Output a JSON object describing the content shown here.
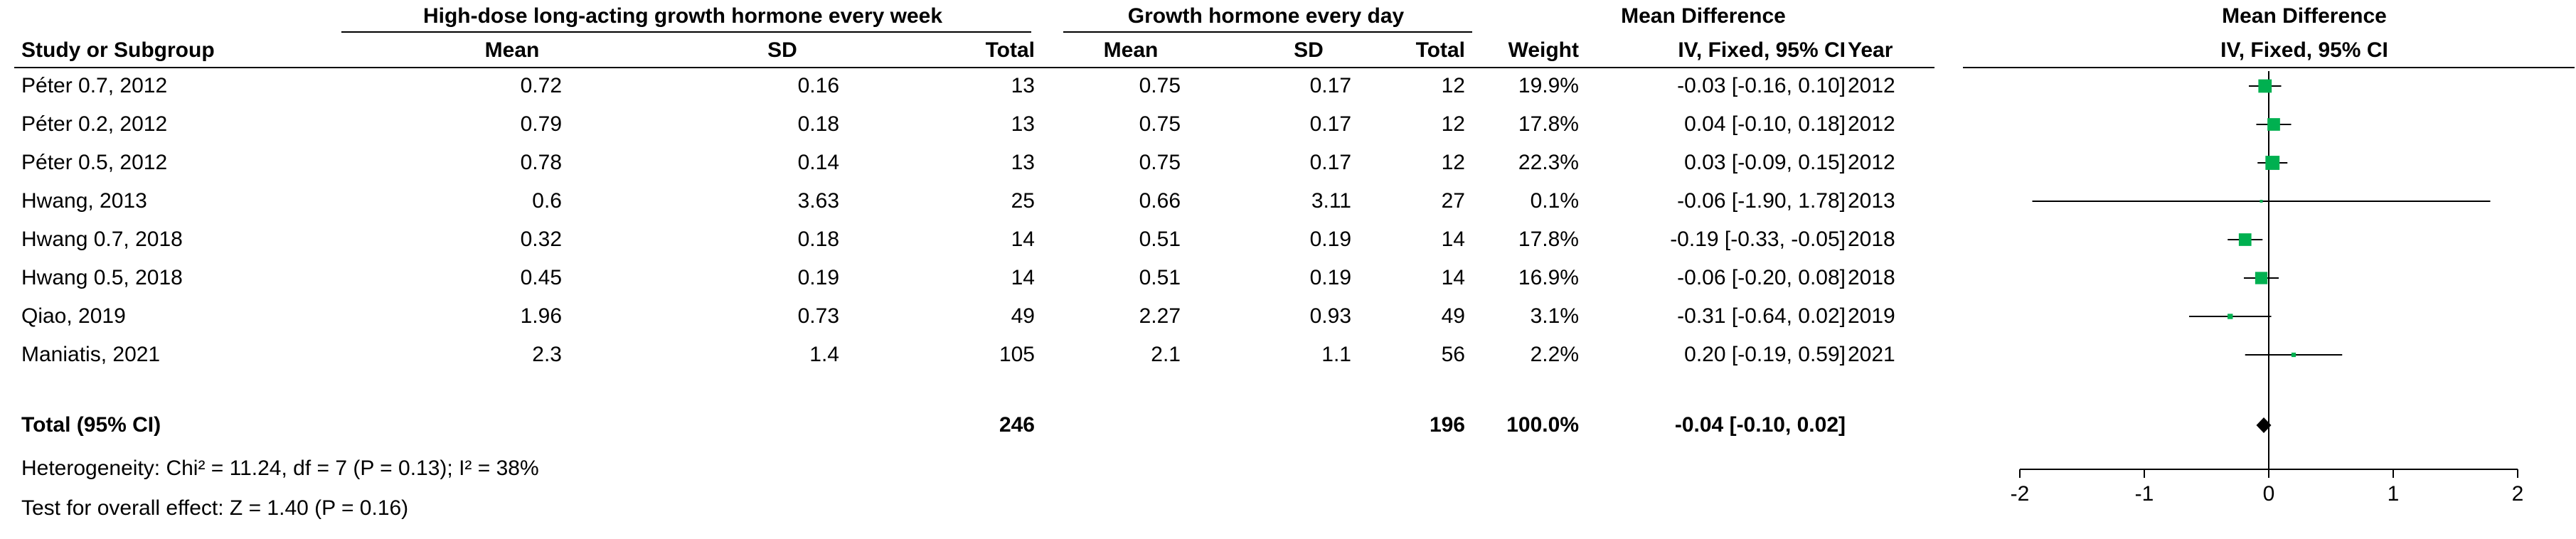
{
  "header": {
    "group1_title": "High-dose long-acting growth hormone every week",
    "group2_title": "Growth hormone every day",
    "md_title": "Mean Difference",
    "plot_title": "Mean Difference",
    "col_study": "Study or Subgroup",
    "col_mean1": "Mean",
    "col_sd1": "SD",
    "col_total1": "Total",
    "col_mean2": "Mean",
    "col_sd2": "SD",
    "col_total2": "Total",
    "col_weight": "Weight",
    "col_md": "IV, Fixed, 95% CI",
    "col_year": "Year",
    "plot_subtitle": "IV, Fixed, 95% CI"
  },
  "studies": [
    {
      "name": "Péter 0.7, 2012",
      "mean1": "0.72",
      "sd1": "0.16",
      "total1": "13",
      "mean2": "0.75",
      "sd2": "0.17",
      "total2": "12",
      "weight": "19.9%",
      "ci": "-0.03 [-0.16, 0.10]",
      "year": "2012"
    },
    {
      "name": "Péter 0.2, 2012",
      "mean1": "0.79",
      "sd1": "0.18",
      "total1": "13",
      "mean2": "0.75",
      "sd2": "0.17",
      "total2": "12",
      "weight": "17.8%",
      "ci": "0.04 [-0.10, 0.18]",
      "year": "2012"
    },
    {
      "name": "Péter 0.5, 2012",
      "mean1": "0.78",
      "sd1": "0.14",
      "total1": "13",
      "mean2": "0.75",
      "sd2": "0.17",
      "total2": "12",
      "weight": "22.3%",
      "ci": "0.03 [-0.09, 0.15]",
      "year": "2012"
    },
    {
      "name": "Hwang, 2013",
      "mean1": "0.6",
      "sd1": "3.63",
      "total1": "25",
      "mean2": "0.66",
      "sd2": "3.11",
      "total2": "27",
      "weight": "0.1%",
      "ci": "-0.06 [-1.90, 1.78]",
      "year": "2013"
    },
    {
      "name": "Hwang 0.7, 2018",
      "mean1": "0.32",
      "sd1": "0.18",
      "total1": "14",
      "mean2": "0.51",
      "sd2": "0.19",
      "total2": "14",
      "weight": "17.8%",
      "ci": "-0.19 [-0.33, -0.05]",
      "year": "2018"
    },
    {
      "name": "Hwang 0.5, 2018",
      "mean1": "0.45",
      "sd1": "0.19",
      "total1": "14",
      "mean2": "0.51",
      "sd2": "0.19",
      "total2": "14",
      "weight": "16.9%",
      "ci": "-0.06 [-0.20, 0.08]",
      "year": "2018"
    },
    {
      "name": "Qiao, 2019",
      "mean1": "1.96",
      "sd1": "0.73",
      "total1": "49",
      "mean2": "2.27",
      "sd2": "0.93",
      "total2": "49",
      "weight": "3.1%",
      "ci": "-0.31 [-0.64, 0.02]",
      "year": "2019"
    },
    {
      "name": "Maniatis, 2021",
      "mean1": "2.3",
      "sd1": "1.4",
      "total1": "105",
      "mean2": "2.1",
      "sd2": "1.1",
      "total2": "56",
      "weight": "2.2%",
      "ci": "0.20 [-0.19, 0.59]",
      "year": "2021"
    }
  ],
  "total_row": {
    "label": "Total (95% CI)",
    "total1": "246",
    "total2": "196",
    "weight": "100.0%",
    "ci": "-0.04 [-0.10, 0.02]"
  },
  "footer": {
    "heterogeneity": "Heterogeneity: Chi² = 11.24, df = 7 (P = 0.13); I² = 38%",
    "overall_effect": "Test for overall effect: Z = 1.40 (P = 0.16)"
  },
  "colors": {
    "point": "#00b050",
    "line": "#000000",
    "diamond": "#000000"
  },
  "chart_data": {
    "type": "scatter",
    "title": "Mean Difference",
    "subtitle": "IV, Fixed, 95% CI",
    "xlim": [
      -2,
      2
    ],
    "ticks": [
      -2,
      -1,
      0,
      1,
      2
    ],
    "tick_labels": [
      "-2",
      "-1",
      "0",
      "1",
      "2"
    ],
    "null_line": 0,
    "series": [
      {
        "points": [
          {
            "study": "Péter 0.7, 2012",
            "md": -0.03,
            "lo": -0.16,
            "hi": 0.1,
            "weight": 19.9
          },
          {
            "study": "Péter 0.2, 2012",
            "md": 0.04,
            "lo": -0.1,
            "hi": 0.18,
            "weight": 17.8
          },
          {
            "study": "Péter 0.5, 2012",
            "md": 0.03,
            "lo": -0.09,
            "hi": 0.15,
            "weight": 22.3
          },
          {
            "study": "Hwang, 2013",
            "md": -0.06,
            "lo": -1.9,
            "hi": 1.78,
            "weight": 0.1
          },
          {
            "study": "Hwang 0.7, 2018",
            "md": -0.19,
            "lo": -0.33,
            "hi": -0.05,
            "weight": 17.8
          },
          {
            "study": "Hwang 0.5, 2018",
            "md": -0.06,
            "lo": -0.2,
            "hi": 0.08,
            "weight": 16.9
          },
          {
            "study": "Qiao, 2019",
            "md": -0.31,
            "lo": -0.64,
            "hi": 0.02,
            "weight": 3.1
          },
          {
            "study": "Maniatis, 2021",
            "md": 0.2,
            "lo": -0.19,
            "hi": 0.59,
            "weight": 2.2
          }
        ]
      }
    ],
    "pooled": {
      "md": -0.04,
      "lo": -0.1,
      "hi": 0.02
    }
  }
}
